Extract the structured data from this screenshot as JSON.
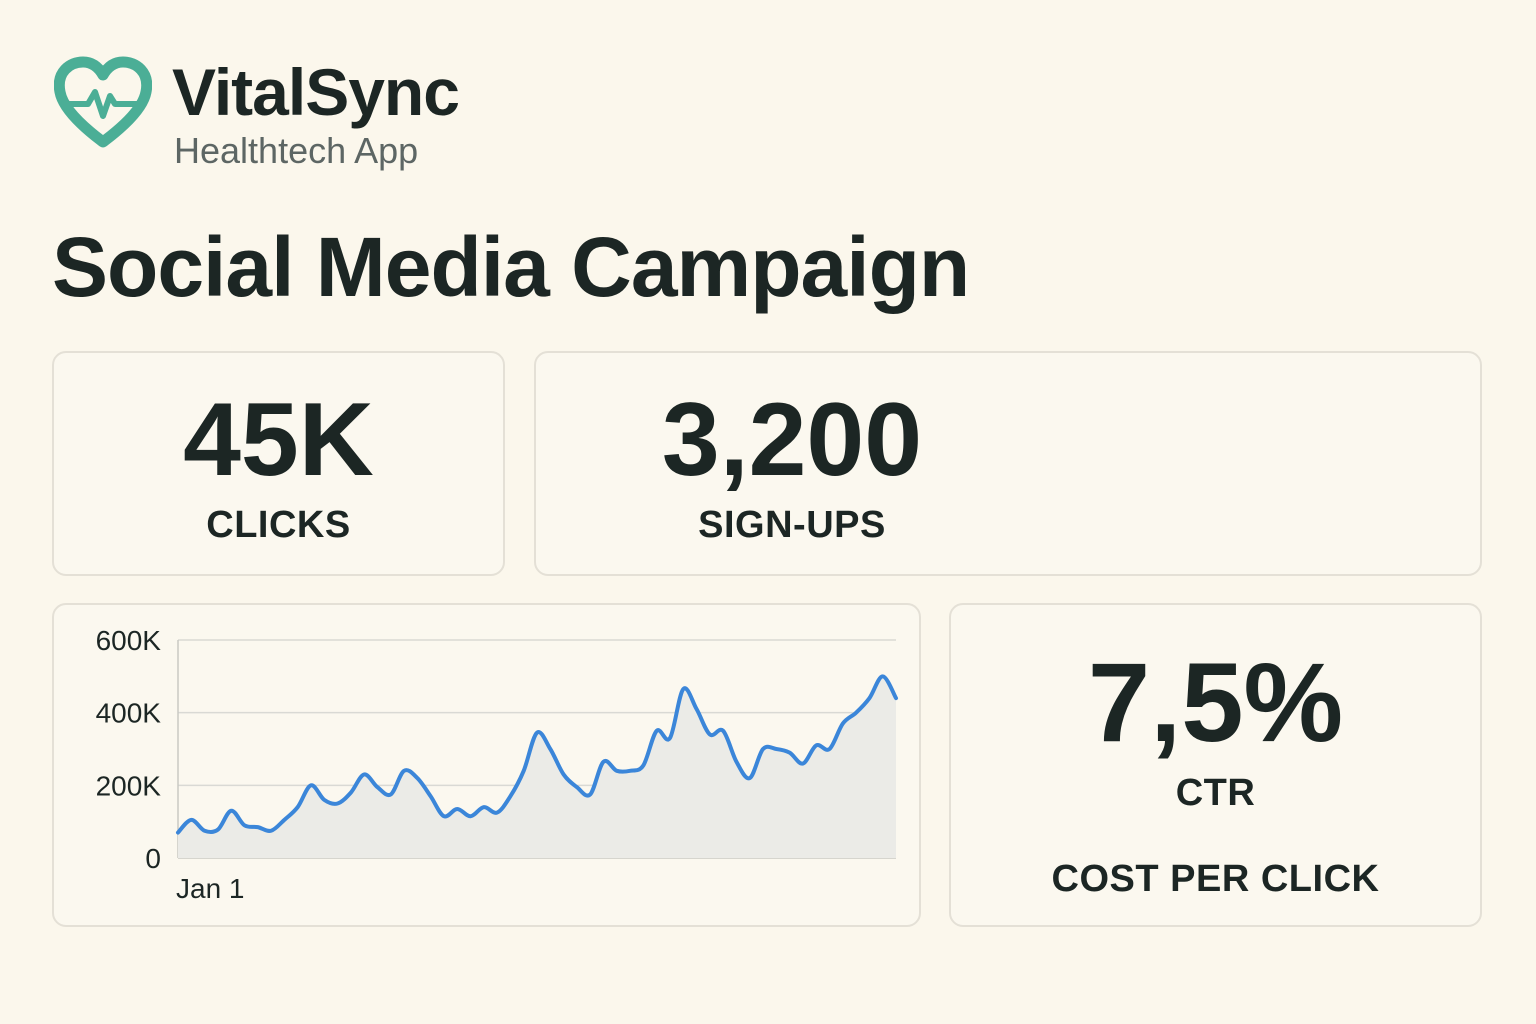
{
  "brand": {
    "name": "VitalSync",
    "subtitle": "Healthtech App",
    "logo_icon": "heart-pulse-icon",
    "accent_color": "#4bae96"
  },
  "page": {
    "title": "Social Media Campaign"
  },
  "metrics": {
    "clicks": {
      "value": "45K",
      "label": "CLICKS"
    },
    "signups": {
      "value": "3,200",
      "label": "SIGN-UPS"
    },
    "ctr": {
      "value": "7,5%",
      "label": "CTR",
      "secondary_label": "COST PER CLICK"
    }
  },
  "chart_data": {
    "type": "area",
    "title": "",
    "xlabel": "",
    "ylabel": "",
    "x_tick_labels": [
      "Jan 1"
    ],
    "y_tick_labels": [
      "0",
      "200K",
      "400K",
      "600K"
    ],
    "ylim": [
      0,
      600000
    ],
    "grid": true,
    "line_color": "#3b86d9",
    "fill_color": "#ebebe7",
    "series": [
      {
        "values": [
          70000,
          105000,
          75000,
          78000,
          130000,
          90000,
          85000,
          75000,
          105000,
          140000,
          200000,
          160000,
          150000,
          180000,
          230000,
          195000,
          175000,
          240000,
          220000,
          170000,
          115000,
          135000,
          115000,
          140000,
          125000,
          170000,
          240000,
          345000,
          300000,
          230000,
          195000,
          175000,
          265000,
          240000,
          240000,
          255000,
          350000,
          330000,
          465000,
          410000,
          340000,
          350000,
          265000,
          220000,
          300000,
          300000,
          290000,
          260000,
          310000,
          300000,
          370000,
          400000,
          440000,
          500000,
          440000
        ]
      }
    ]
  }
}
